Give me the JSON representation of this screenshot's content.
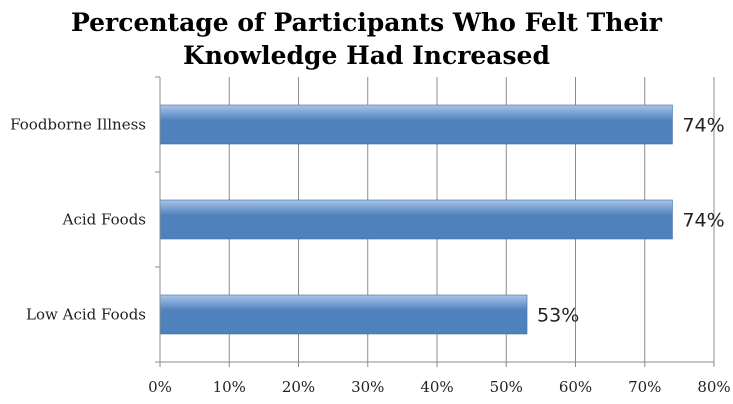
{
  "chart_data": {
    "type": "bar",
    "orientation": "horizontal",
    "title_lines": [
      "Percentage of Participants Who Felt Their",
      "Knowledge Had Increased"
    ],
    "categories": [
      "Foodborne Illness",
      "Acid Foods",
      "Low Acid Foods"
    ],
    "values": [
      74,
      74,
      53
    ],
    "data_labels": [
      "74%",
      "74%",
      "53%"
    ],
    "x_ticks": [
      "0%",
      "10%",
      "20%",
      "30%",
      "40%",
      "50%",
      "60%",
      "70%",
      "80%"
    ],
    "xlim": [
      0,
      80
    ],
    "xlabel": "",
    "ylabel": "",
    "grid": true,
    "legend": "none",
    "bar_color": "#4f81bd",
    "bar_highlight": "#a9c4ea"
  }
}
